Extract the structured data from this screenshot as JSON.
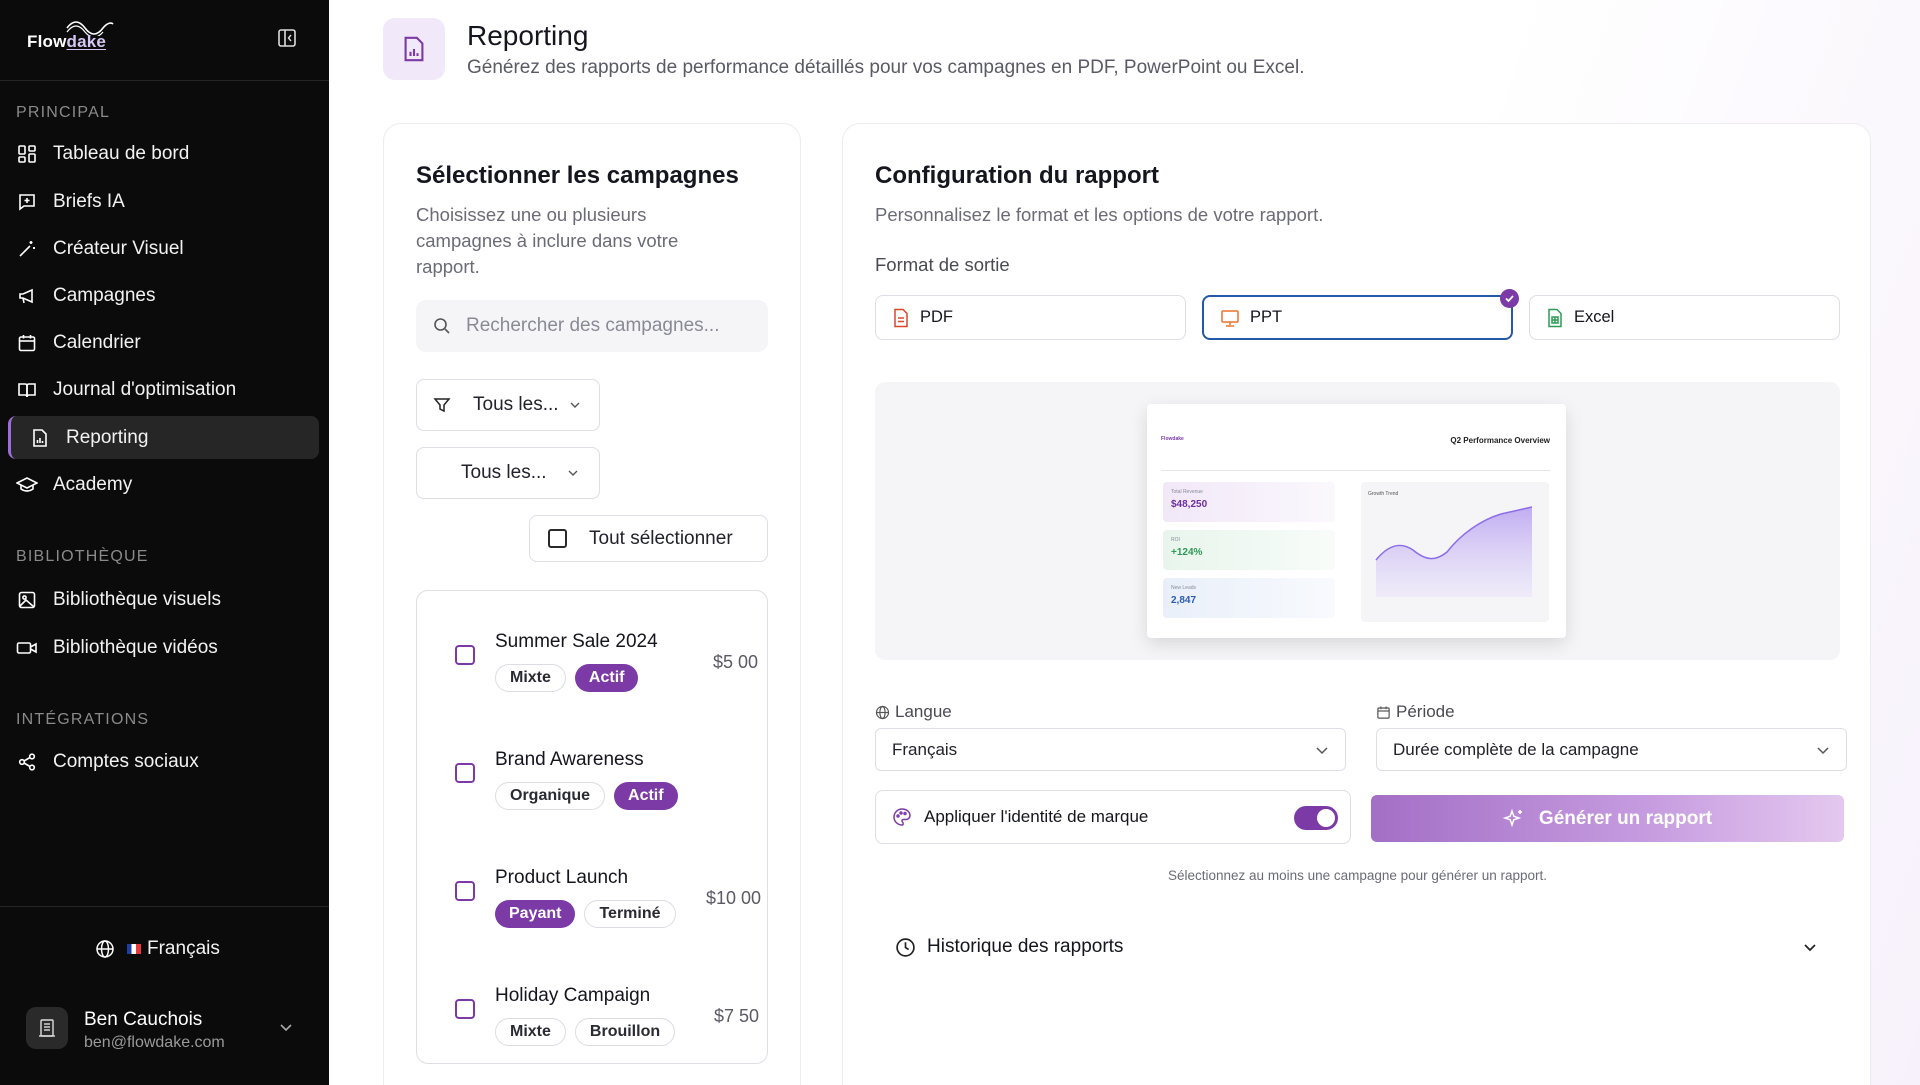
{
  "app": {
    "logo_prefix": "Flow",
    "logo_suffix": "dake"
  },
  "sidebar": {
    "section_principal": "PRINCIPAL",
    "section_library": "BIBLIOTHÈQUE",
    "section_integrations": "INTÉGRATIONS",
    "items": [
      {
        "label": "Tableau de bord",
        "icon": "dashboard-icon"
      },
      {
        "label": "Briefs IA",
        "icon": "message-plus-icon"
      },
      {
        "label": "Créateur Visuel",
        "icon": "magic-wand-icon"
      },
      {
        "label": "Campagnes",
        "icon": "megaphone-icon"
      },
      {
        "label": "Calendrier",
        "icon": "calendar-icon"
      },
      {
        "label": "Journal d'optimisation",
        "icon": "book-icon"
      },
      {
        "label": "Reporting",
        "icon": "report-icon",
        "active": true
      },
      {
        "label": "Academy",
        "icon": "graduation-cap-icon"
      }
    ],
    "library_items": [
      {
        "label": "Bibliothèque visuels",
        "icon": "image-icon"
      },
      {
        "label": "Bibliothèque vidéos",
        "icon": "video-icon"
      }
    ],
    "integration_items": [
      {
        "label": "Comptes sociaux",
        "icon": "share-icon"
      }
    ],
    "language": "Français",
    "user": {
      "name": "Ben Cauchois",
      "email": "ben@flowdake.com"
    }
  },
  "header": {
    "title": "Reporting",
    "subtitle": "Générez des rapports de performance détaillés pour vos campagnes en PDF, PowerPoint ou Excel."
  },
  "campaigns_panel": {
    "title": "Sélectionner les campagnes",
    "subtitle_lines": [
      "Choisissez une ou plusieurs",
      "campagnes à inclure dans votre",
      "rapport."
    ],
    "search_placeholder": "Rechercher des campagnes...",
    "filter_type": "Tous les...",
    "filter_status": "Tous les...",
    "select_all": "Tout sélectionner",
    "campaigns": [
      {
        "name": "Summer Sale 2024",
        "tags": [
          "Mixte",
          "Actif"
        ],
        "budget": "$5 00"
      },
      {
        "name": "Brand Awareness",
        "tags": [
          "Organique",
          "Actif"
        ],
        "budget": ""
      },
      {
        "name": "Product Launch",
        "tags": [
          "Payant",
          "Terminé"
        ],
        "budget": "$10 00"
      },
      {
        "name": "Holiday Campaign",
        "tags": [
          "Mixte",
          "Brouillon"
        ],
        "budget": "$7 50"
      }
    ]
  },
  "config_panel": {
    "title": "Configuration du rapport",
    "subtitle": "Personnalisez le format et les options de votre rapport.",
    "format_label": "Format de sortie",
    "formats": [
      {
        "label": "PDF",
        "icon": "pdf-file-icon",
        "color": "#d9472b"
      },
      {
        "label": "PPT",
        "icon": "presentation-icon",
        "color": "#e8742a",
        "selected": true
      },
      {
        "label": "Excel",
        "icon": "spreadsheet-icon",
        "color": "#2f9a57"
      }
    ],
    "preview": {
      "logo": "Flowdake",
      "title": "Q2 Performance Overview",
      "kpis": [
        {
          "label": "Total Revenue",
          "value": "$48,250",
          "color": "#6b2fa0"
        },
        {
          "label": "ROI",
          "value": "+124%",
          "color": "#2f9a57"
        },
        {
          "label": "New Leads",
          "value": "2,847",
          "color": "#2d5bb3"
        }
      ],
      "chart_label": "Growth Trend"
    },
    "language_label": "Langue",
    "language_value": "Français",
    "period_label": "Période",
    "period_value": "Durée complète de la campagne",
    "brand_identity_label": "Appliquer l'identité de marque",
    "brand_identity_on": true,
    "generate_label": "Générer un rapport",
    "hint": "Sélectionnez au moins une campagne pour générer un rapport.",
    "history_label": "Historique des rapports"
  },
  "colors": {
    "accent": "#7b3aa5",
    "selected_border": "#2458a8",
    "sidebar_bg": "#0b0b0b"
  }
}
